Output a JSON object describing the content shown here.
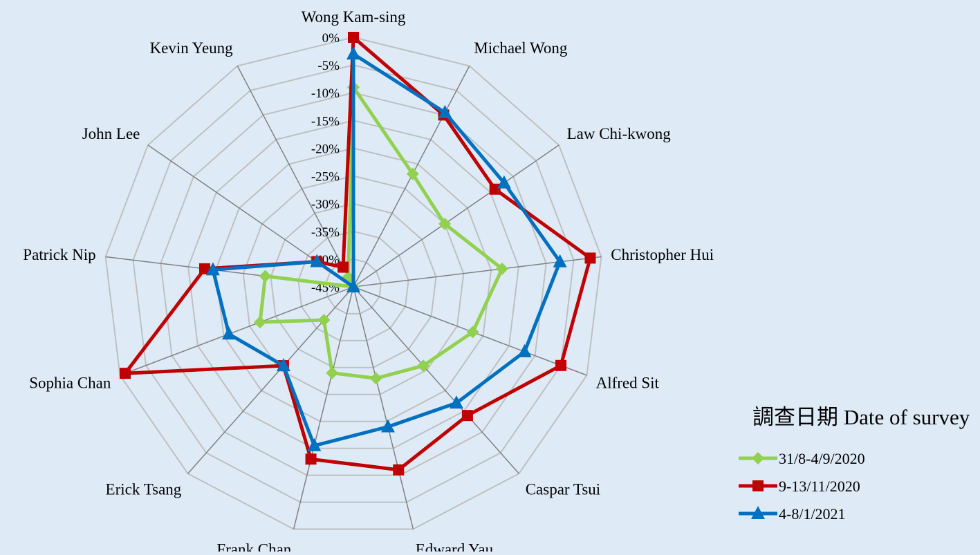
{
  "chart_data": {
    "type": "radar",
    "categories": [
      "Wong Kam-sing",
      "Michael Wong",
      "Law Chi-kwong",
      "Christopher Hui",
      "Alfred Sit",
      "Caspar Tsui",
      "Edward Yau",
      "Frank Chan",
      "Erick Tsang",
      "Sophia Chan",
      "Patrick Nip",
      "John Lee",
      "Kevin Yeung"
    ],
    "radial_ticks": [
      "0%",
      "-5%",
      "-10%",
      "-15%",
      "-20%",
      "-25%",
      "-30%",
      "-35%",
      "-40%",
      "-45%"
    ],
    "rlim": [
      -45,
      0
    ],
    "grid": true,
    "legend_title": "調查日期 Date of survey",
    "legend_position": "right",
    "series": [
      {
        "name": "31/8-4/9/2020",
        "color": "#92d050",
        "marker": "diamond",
        "values": [
          -9,
          -22,
          -25,
          -18,
          -22,
          -26,
          -28,
          -29,
          -37,
          -27,
          -29,
          -45,
          -43
        ]
      },
      {
        "name": "9-13/11/2020",
        "color": "#c00000",
        "marker": "square",
        "values": [
          0,
          -10,
          -14,
          -2,
          -5,
          -14,
          -11,
          -13,
          -26,
          -1,
          -18,
          -37,
          -41
        ]
      },
      {
        "name": "4-8/1/2021",
        "color": "#0070c0",
        "marker": "triangle",
        "values": [
          -3,
          -9.5,
          -12,
          -7.5,
          -12,
          -17,
          -19,
          -15.5,
          -26,
          -21,
          -19.5,
          -37,
          -45
        ]
      }
    ]
  }
}
